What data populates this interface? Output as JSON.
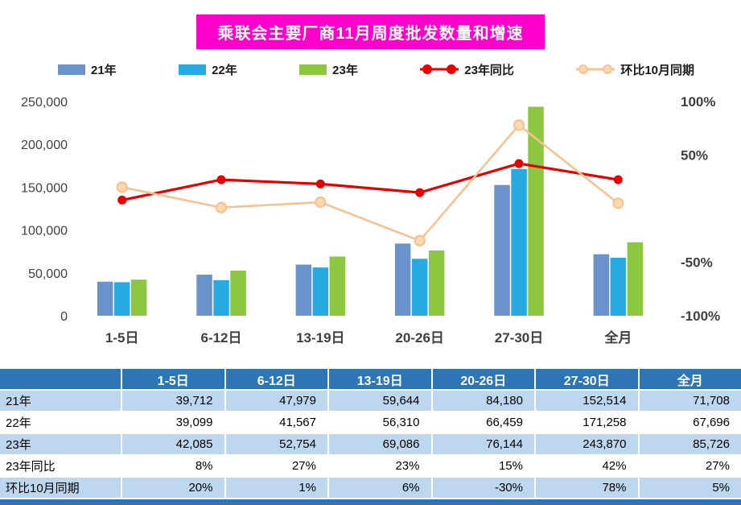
{
  "title": "乘联会主要厂商11月周度批发数量和增速",
  "colors": {
    "title_bg": "#FF00CC",
    "bar_21": "#6A93CB",
    "bar_22": "#27AAE1",
    "bar_23": "#8DC63F",
    "line_yoy": "#E60000",
    "line_mom": "#F7C291",
    "line_mom_marker_fill": "#FBD8AE",
    "table_header_bg": "#2E75B6",
    "table_alt_row_bg": "#BDD7EE",
    "axis_text": "#404040"
  },
  "legend": [
    {
      "label": "21年",
      "type": "bar",
      "color": "#6A93CB"
    },
    {
      "label": "22年",
      "type": "bar",
      "color": "#27AAE1"
    },
    {
      "label": "23年",
      "type": "bar",
      "color": "#8DC63F"
    },
    {
      "label": "23年同比",
      "type": "line",
      "color": "#E60000",
      "marker_fill": "#E60000"
    },
    {
      "label": "环比10月同期",
      "type": "line",
      "color": "#F7C291",
      "marker_fill": "#FBD8AE"
    }
  ],
  "chart_data": {
    "type": "bar",
    "subtype": "grouped bars with two overlay lines",
    "categories": [
      "1-5日",
      "6-12日",
      "13-19日",
      "20-26日",
      "27-30日",
      "全月"
    ],
    "series": [
      {
        "name": "21年",
        "type": "bar",
        "axis": "left",
        "color": "#6A93CB",
        "values": [
          39712,
          47979,
          59644,
          84180,
          152514,
          71708
        ]
      },
      {
        "name": "22年",
        "type": "bar",
        "axis": "left",
        "color": "#27AAE1",
        "values": [
          39099,
          41567,
          56310,
          66459,
          171258,
          67696
        ]
      },
      {
        "name": "23年",
        "type": "bar",
        "axis": "left",
        "color": "#8DC63F",
        "values": [
          42085,
          52754,
          69086,
          76144,
          243870,
          85726
        ]
      },
      {
        "name": "23年同比",
        "type": "line",
        "axis": "right",
        "color": "#E60000",
        "marker_fill": "#E60000",
        "values": [
          8,
          27,
          23,
          15,
          42,
          27
        ]
      },
      {
        "name": "环比10月同期",
        "type": "line",
        "axis": "right",
        "color": "#F7C291",
        "marker_fill": "#FBD8AE",
        "values": [
          20,
          1,
          6,
          -30,
          78,
          5
        ]
      }
    ],
    "left_axis": {
      "min": 0,
      "max": 250000,
      "tick_values": [
        0,
        50000,
        100000,
        150000,
        200000,
        250000
      ],
      "tick_labels": [
        "0",
        "50,000",
        "100,000",
        "150,000",
        "200,000",
        "250,000"
      ]
    },
    "right_axis": {
      "min": -100,
      "max": 100,
      "tick_values": [
        100,
        50,
        -50,
        -100
      ],
      "tick_labels": [
        "100%",
        "50%",
        "-50%",
        "-100%"
      ]
    },
    "grid": false,
    "legend_position": "top"
  },
  "table": {
    "header": [
      "",
      "1-5日",
      "6-12日",
      "13-19日",
      "20-26日",
      "27-30日",
      "全月"
    ],
    "rows": [
      {
        "label": "21年",
        "values": [
          "39,712",
          "47,979",
          "59,644",
          "84,180",
          "152,514",
          "71,708"
        ]
      },
      {
        "label": "22年",
        "values": [
          "39,099",
          "41,567",
          "56,310",
          "66,459",
          "171,258",
          "67,696"
        ]
      },
      {
        "label": "23年",
        "values": [
          "42,085",
          "52,754",
          "69,086",
          "76,144",
          "243,870",
          "85,726"
        ]
      },
      {
        "label": "23年同比",
        "values": [
          "8%",
          "27%",
          "23%",
          "15%",
          "42%",
          "27%"
        ]
      },
      {
        "label": "环比10月同期",
        "values": [
          "20%",
          "1%",
          "6%",
          "-30%",
          "78%",
          "5%"
        ]
      }
    ]
  }
}
